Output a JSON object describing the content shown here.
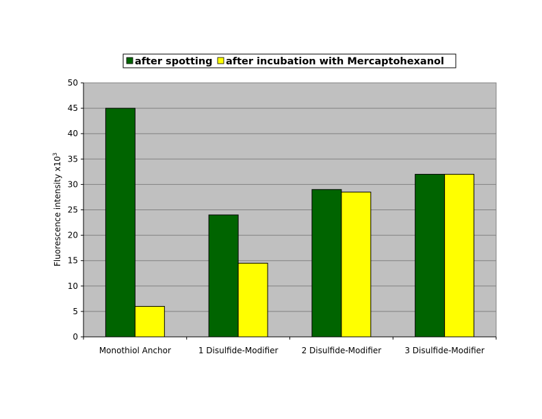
{
  "chart_data": {
    "type": "bar",
    "title": "",
    "xlabel": "",
    "ylabel": "Fluorescence intensity x10",
    "ylabel_superscript": "3",
    "categories": [
      "Monothiol Anchor",
      "1 Disulfide-Modifier",
      "2 Disulfide-Modifier",
      "3 Disulfide-Modifier"
    ],
    "series": [
      {
        "name": "after spotting",
        "color": "#006400",
        "values": [
          45,
          24,
          29,
          32
        ]
      },
      {
        "name": "after incubation with Mercaptohexanol",
        "color": "#ffff00",
        "values": [
          6,
          14.5,
          28.5,
          32
        ]
      }
    ],
    "ylim": [
      0,
      50
    ],
    "yticks": [
      0,
      5,
      10,
      15,
      20,
      25,
      30,
      35,
      40,
      45,
      50
    ],
    "grid": true,
    "legend_position": "top",
    "plot_background": "#c0c0c0"
  }
}
